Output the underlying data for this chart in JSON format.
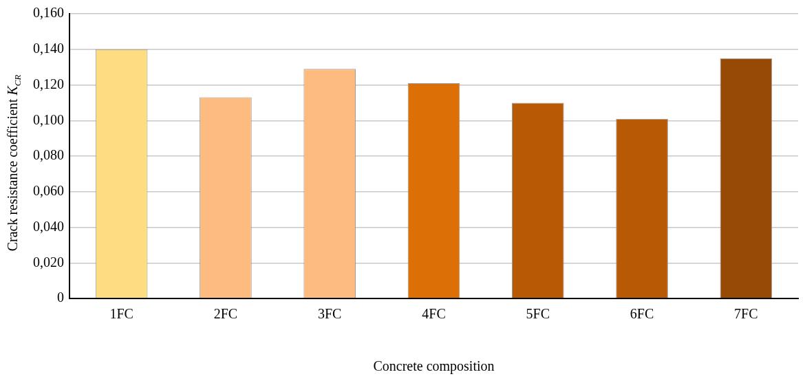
{
  "chart_data": {
    "type": "bar",
    "xlabel": "Concrete composition",
    "ylabel": "Crack resistance coefficient K$_{CR}$",
    "categories": [
      "1FC",
      "2FC",
      "3FC",
      "4FC",
      "5FC",
      "6FC",
      "7FC"
    ],
    "values": [
      0.14,
      0.113,
      0.129,
      0.121,
      0.11,
      0.101,
      0.135
    ],
    "colors": [
      "#fddc82",
      "#fdbb7f",
      "#fdbb7f",
      "#dc6f05",
      "#b85a05",
      "#b85a05",
      "#964a05"
    ],
    "ylim": [
      0,
      0.16
    ],
    "yticks": [
      {
        "value": 0,
        "label": "0"
      },
      {
        "value": 0.02,
        "label": "0,020"
      },
      {
        "value": 0.04,
        "label": "0,040"
      },
      {
        "value": 0.06,
        "label": "0,060"
      },
      {
        "value": 0.08,
        "label": "0,080"
      },
      {
        "value": 0.1,
        "label": "0,100"
      },
      {
        "value": 0.12,
        "label": "0,120"
      },
      {
        "value": 0.14,
        "label": "0,140"
      },
      {
        "value": 0.16,
        "label": "0,160"
      }
    ],
    "grid": "y"
  }
}
